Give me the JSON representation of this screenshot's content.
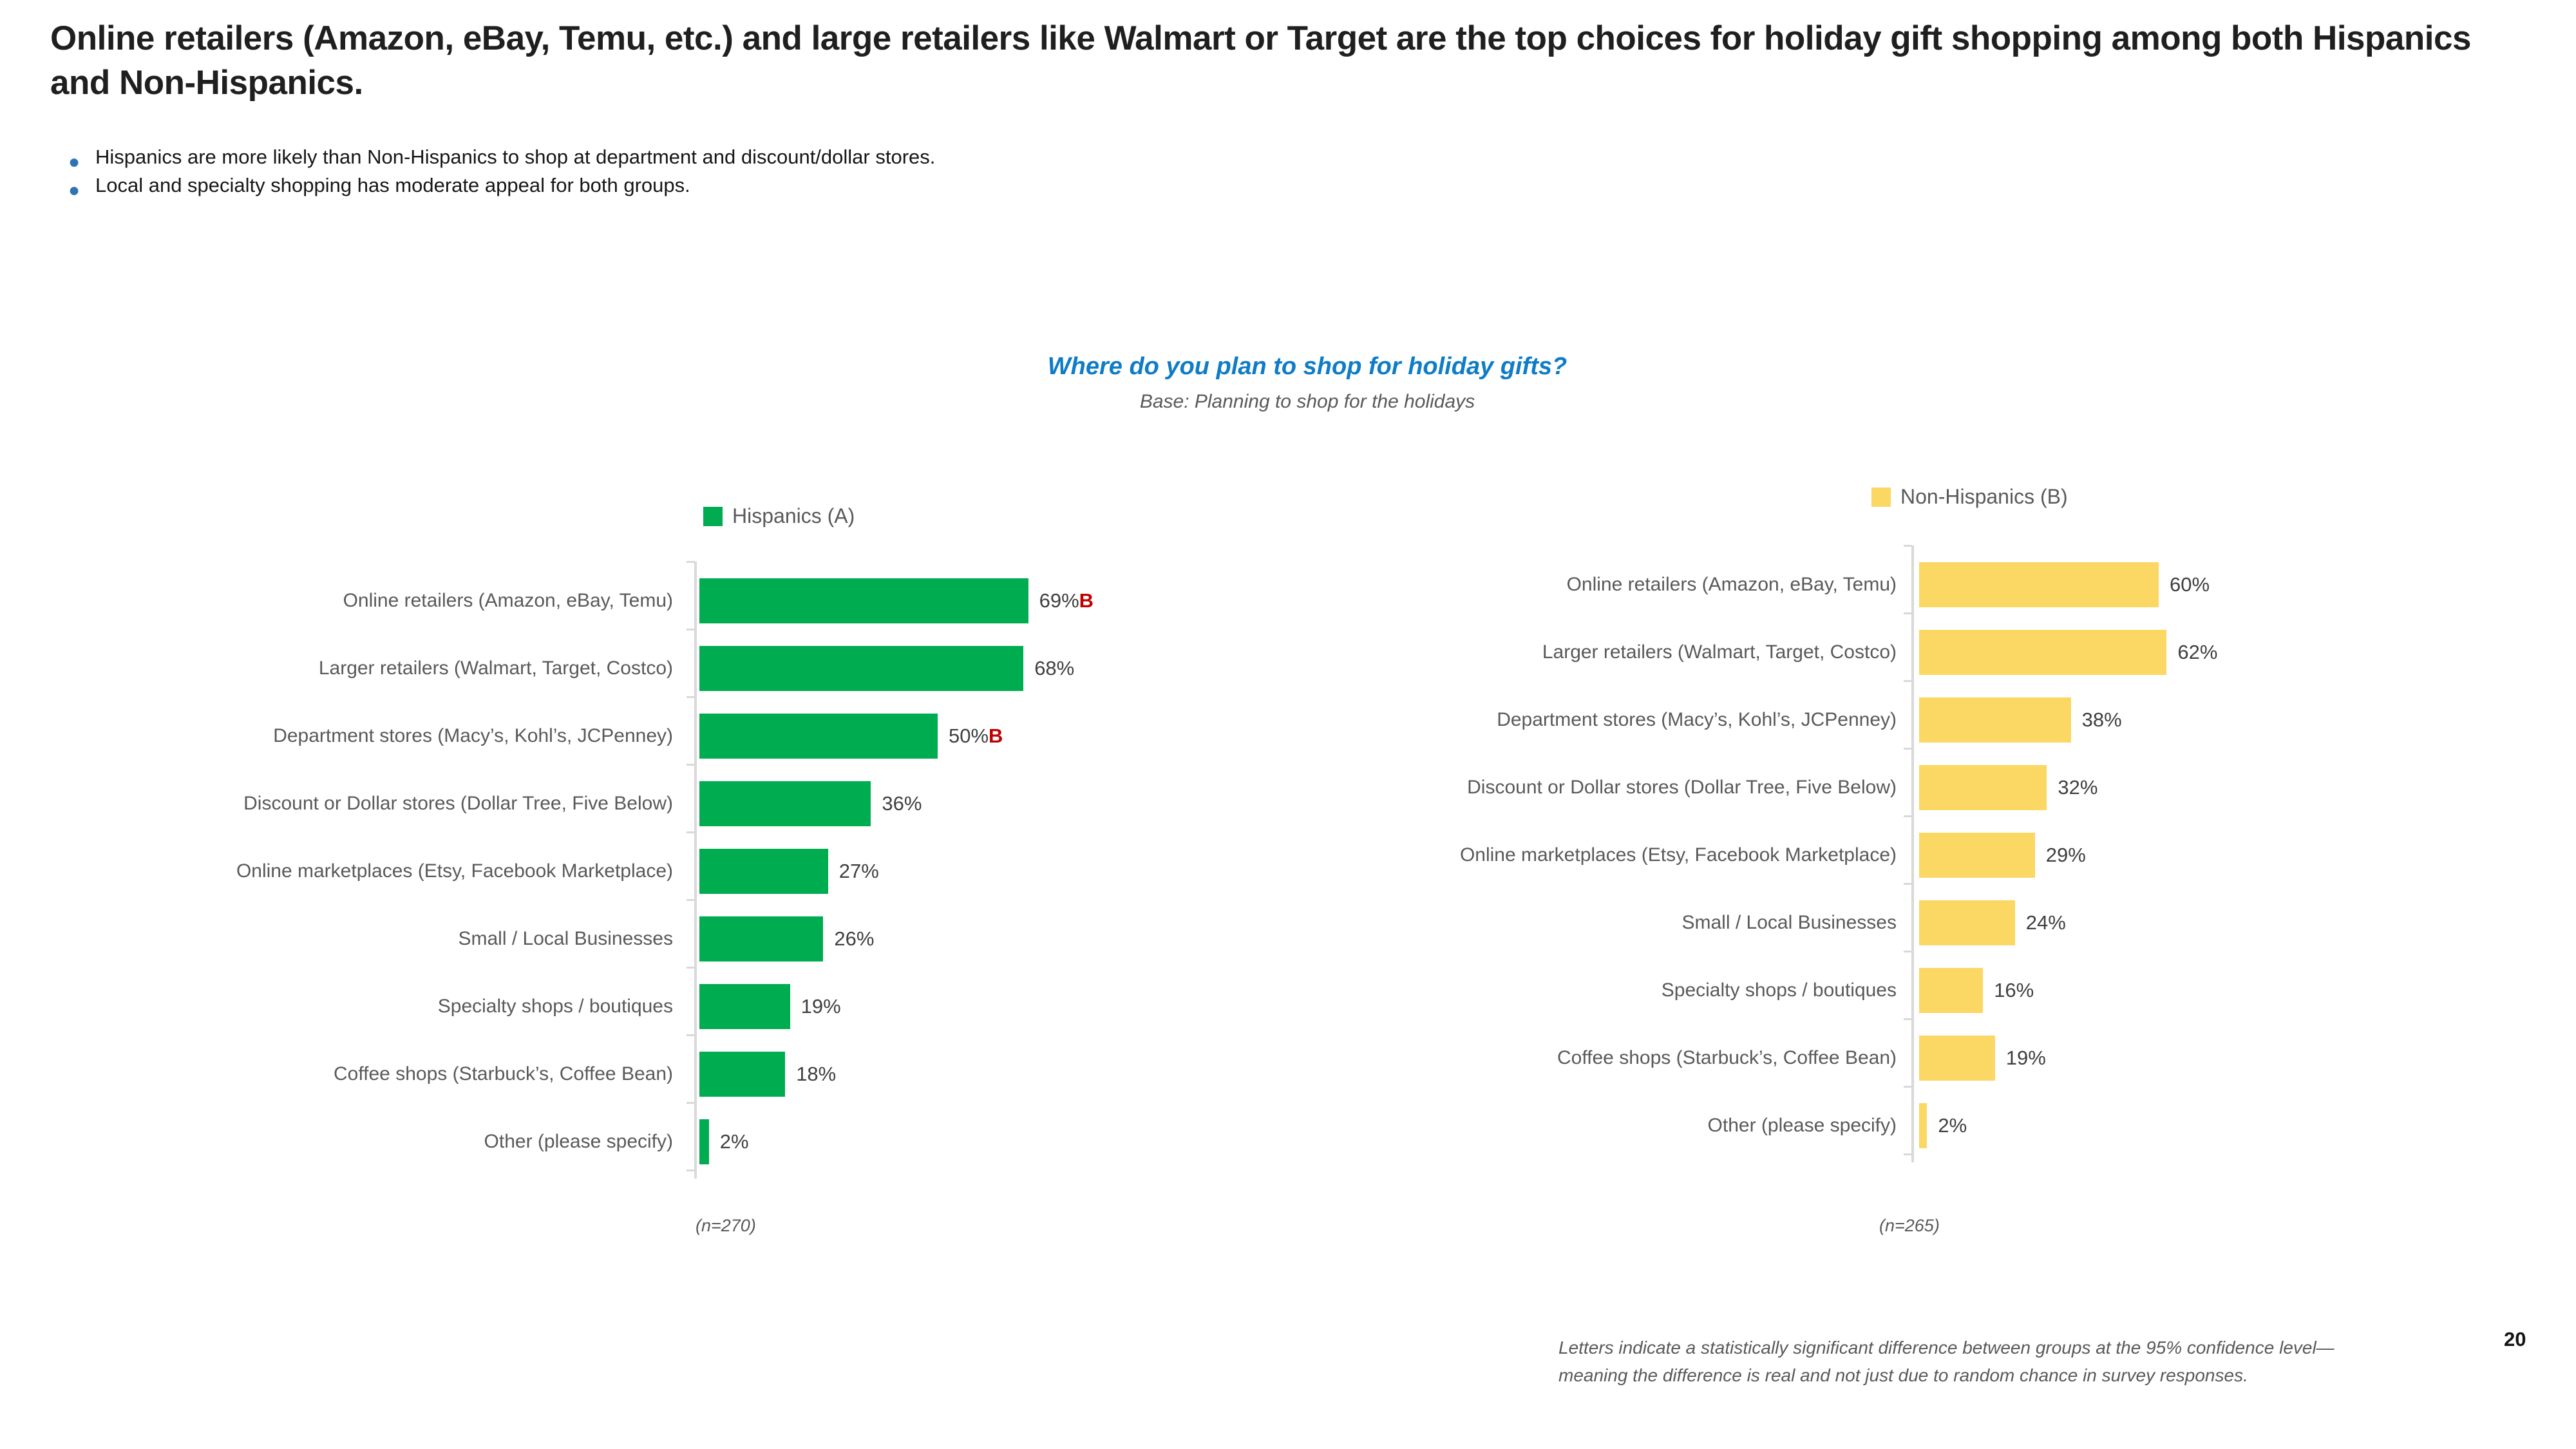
{
  "slide": {
    "title": "Online retailers (Amazon, eBay, Temu, etc.) and large retailers like Walmart or Target are the top choices for holiday gift shopping among both Hispanics and Non-Hispanics.",
    "bullets": [
      "Hispanics are more likely than Non-Hispanics to shop at department and discount/dollar stores.",
      "Local and specialty shopping has moderate appeal for both groups."
    ],
    "footnote": "Letters indicate a statistically significant difference between groups at the 95% confidence level—meaning the difference is real and not just due to random chance in survey responses.",
    "page_number": "20"
  },
  "chart_header": {
    "title": "Where do you plan to shop for holiday gifts?",
    "subtitle": "Base: Planning to shop for the holidays"
  },
  "colors": {
    "hispanics_green": "#00ac50",
    "non_hispanics_yellow": "#fbd763",
    "significance_red": "#c00000",
    "title_blue": "#0e7cc7",
    "axis_gray": "#d9d9d9"
  },
  "chart_data": [
    {
      "type": "bar",
      "orientation": "horizontal",
      "legend": {
        "label": "Hispanics (A)",
        "color": "#00ac50"
      },
      "categories": [
        "Online retailers (Amazon, eBay, Temu)",
        "Larger retailers (Walmart, Target, Costco)",
        "Department stores (Macy’s, Kohl’s, JCPenney)",
        "Discount or Dollar stores (Dollar Tree, Five Below)",
        "Online marketplaces (Etsy, Facebook Marketplace)",
        "Small / Local Businesses",
        "Specialty shops / boutiques",
        "Coffee shops (Starbuck’s, Coffee Bean)",
        "Other (please specify)"
      ],
      "values": [
        69,
        68,
        50,
        36,
        27,
        26,
        19,
        18,
        2
      ],
      "value_labels": [
        "69%",
        "68%",
        "50%",
        "36%",
        "27%",
        "26%",
        "19%",
        "18%",
        "2%"
      ],
      "sig": [
        "B",
        "",
        "B",
        "",
        "",
        "",
        "",
        "",
        ""
      ],
      "base_note": "(n=270)",
      "xlim": [
        0,
        100
      ],
      "grid": false
    },
    {
      "type": "bar",
      "orientation": "horizontal",
      "legend": {
        "label": "Non-Hispanics (B)",
        "color": "#fbd763"
      },
      "categories": [
        "Online retailers (Amazon, eBay, Temu)",
        "Larger retailers (Walmart, Target, Costco)",
        "Department stores (Macy’s, Kohl’s, JCPenney)",
        "Discount or Dollar stores (Dollar Tree, Five Below)",
        "Online marketplaces (Etsy, Facebook Marketplace)",
        "Small / Local Businesses",
        "Specialty shops / boutiques",
        "Coffee shops (Starbuck’s, Coffee Bean)",
        "Other (please specify)"
      ],
      "values": [
        60,
        62,
        38,
        32,
        29,
        24,
        16,
        19,
        2
      ],
      "value_labels": [
        "60%",
        "62%",
        "38%",
        "32%",
        "29%",
        "24%",
        "16%",
        "19%",
        "2%"
      ],
      "sig": [
        "",
        "",
        "",
        "",
        "",
        "",
        "",
        "",
        ""
      ],
      "base_note": "(n=265)",
      "xlim": [
        0,
        100
      ],
      "grid": false
    }
  ]
}
